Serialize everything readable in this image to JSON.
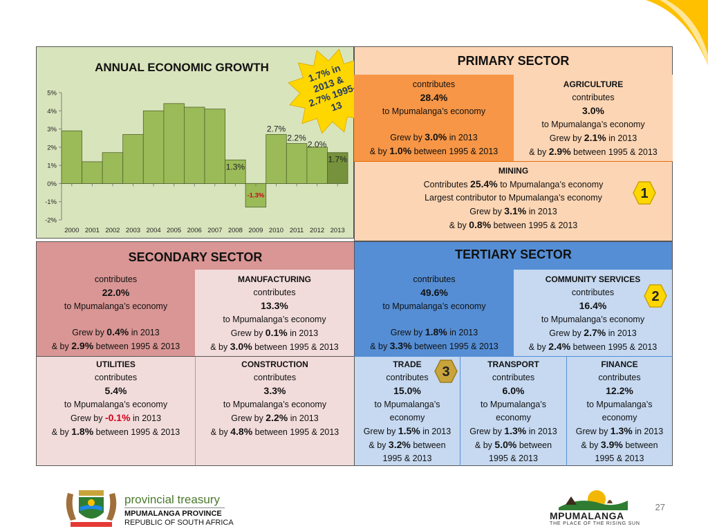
{
  "chart_data": {
    "type": "bar",
    "title": "ANNUAL ECONOMIC GROWTH",
    "categories": [
      "2000",
      "2001",
      "2002",
      "2003",
      "2004",
      "2005",
      "2006",
      "2007",
      "2008",
      "2009",
      "2010",
      "2011",
      "2012",
      "2013"
    ],
    "values": [
      2.9,
      1.2,
      1.7,
      2.7,
      4.0,
      4.4,
      4.2,
      4.1,
      1.3,
      -1.3,
      2.7,
      2.2,
      2.0,
      1.7
    ],
    "data_labels": {
      "8": "1.3%",
      "9": "-1.3%",
      "10": "2.7%",
      "11": "2.2%",
      "12": "2.0%",
      "13": "1.7%"
    },
    "yticks": [
      "5%",
      "4%",
      "3%",
      "2%",
      "1%",
      "0%",
      "-1%",
      "-2%"
    ],
    "ylim": [
      -2,
      5
    ],
    "grid": false,
    "colors": {
      "bar": "#9bbb59",
      "bar_last": "#76923c",
      "bar_stroke": "#4f6228",
      "negative_label": "#d0021b"
    }
  },
  "callout": {
    "text": "1.7% in 2013 & 2.7% 1995-13"
  },
  "primary": {
    "title": "PRIMARY SECTOR",
    "main": {
      "l1": "contributes",
      "l2": "28.4%",
      "l3": "to Mpumalanga’s economy",
      "g1a": "Grew by ",
      "g1b": "3.0%",
      "g1c": " in 2013",
      "g2a": "& by ",
      "g2b": "1.0%",
      "g2c": " between 1995 & 2013"
    },
    "agriculture": {
      "hd": "AGRICULTURE",
      "l1": "contributes",
      "l2": "3.0%",
      "l3": "to Mpumalanga’s economy",
      "g1a": "Grew by ",
      "g1b": "2.1%",
      "g1c": " in 2013",
      "g2a": "& by ",
      "g2b": "2.9%",
      "g2c": " between 1995 & 2013"
    },
    "mining": {
      "hd": "MINING",
      "l1a": "Contributes ",
      "l1b": "25.4%",
      "l1c": " to Mpumalanga’s economy",
      "l2": "Largest contributor to Mpumalanga’s economy",
      "g1a": "Grew by ",
      "g1b": "3.1%",
      "g1c": " in 2013",
      "g2a": "& by ",
      "g2b": "0.8%",
      "g2c": "  between 1995 & 2013"
    },
    "badge": "1"
  },
  "secondary": {
    "title": "SECONDARY SECTOR",
    "main": {
      "l1": "contributes",
      "l2": "22.0%",
      "l3": "to Mpumalanga’s economy",
      "g1a": "Grew by ",
      "g1b": "0.4%",
      "g1c": " in 2013",
      "g2a": "& by ",
      "g2b": "2.9%",
      "g2c": " between 1995 & 2013"
    },
    "manufacturing": {
      "hd": "MANUFACTURING",
      "l1": "contributes",
      "l2": "13.3%",
      "l3": "to Mpumalanga’s economy",
      "g1a": "Grew by ",
      "g1b": "0.1%",
      "g1c": " in 2013",
      "g2a": "& by ",
      "g2b": "3.0%",
      "g2c": " between 1995 & 2013"
    },
    "utilities": {
      "hd": "UTILITIES",
      "l1": "contributes",
      "l2": "5.4%",
      "l3": "to Mpumalanga’s economy",
      "g1a": "Grew by ",
      "g1b": "-0.1%",
      "g1c": " in 2013",
      "g2a": "& by ",
      "g2b": "1.8%",
      "g2c": " between 1995 & 2013"
    },
    "construction": {
      "hd": "CONSTRUCTION",
      "l1": "contributes",
      "l2": "3.3%",
      "l3": "to Mpumalanga’s economy",
      "g1a": "Grew by ",
      "g1b": "2.2%",
      "g1c": " in 2013",
      "g2a": "& by ",
      "g2b": "4.8%",
      "g2c": " between 1995 & 2013"
    }
  },
  "tertiary": {
    "title": "TERTIARY SECTOR",
    "main": {
      "l1": "contributes",
      "l2": "49.6%",
      "l3": "to Mpumalanga’s economy",
      "g1a": "Grew by ",
      "g1b": "1.8%",
      "g1c": " in 2013",
      "g2a": "& by ",
      "g2b": "3.3%",
      "g2c": " between 1995 & 2013"
    },
    "community": {
      "hd": "COMMUNITY SERVICES",
      "l1": "contributes",
      "l2": "16.4%",
      "l3": "to Mpumalanga’s economy",
      "g1a": "Grew by ",
      "g1b": "2.7%",
      "g1c": " in 2013",
      "g2a": "& by ",
      "g2b": "2.4%",
      "g2c": " between 1995 & 2013"
    },
    "trade": {
      "hd": "TRADE",
      "l1": "contributes",
      "l2": "15.0%",
      "l3a": "to Mpumalanga’s",
      "l3b": "economy",
      "g1a": "Grew by ",
      "g1b": "1.5%",
      "g1c": " in 2013",
      "g2a": "& by ",
      "g2b": "3.2%",
      "g2c": " between",
      "g3": "1995 & 2013"
    },
    "transport": {
      "hd": "TRANSPORT",
      "l1": "contributes",
      "l2": "6.0%",
      "l3a": "to Mpumalanga’s",
      "l3b": "economy",
      "g1a": "Grew by ",
      "g1b": "1.3%",
      "g1c": " in 2013",
      "g2a": "& by ",
      "g2b": "5.0%",
      "g2c": " between",
      "g3": "1995 & 2013"
    },
    "finance": {
      "hd": "FINANCE",
      "l1": "contributes",
      "l2": "12.2%",
      "l3a": "to Mpumalanga’s",
      "l3b": "economy",
      "g1a": "Grew by ",
      "g1b": "1.3%",
      "g1c": " in 2013",
      "g2a": "& by ",
      "g2b": "3.9%",
      "g2c": " between",
      "g3": "1995 & 2013"
    },
    "badge2": "2",
    "badge3": "3"
  },
  "footer": {
    "pt_name": "provincial treasury",
    "pt_prov": "MPUMALANGA PROVINCE",
    "pt_rep": "REPUBLIC OF SOUTH AFRICA",
    "mp_word": "MPUMALANGA",
    "mp_tag": "THE PLACE OF THE RISING SUN",
    "page": "27"
  },
  "colors": {
    "chart_bg": "#d8e4bc",
    "primary_dark": "#f79646",
    "primary_light": "#fcd5b4",
    "secondary_dark": "#d99694",
    "secondary_light": "#f2dcdb",
    "tertiary_dark": "#558ed5",
    "tertiary_light": "#c6d9f1",
    "star": "#ffd700"
  }
}
